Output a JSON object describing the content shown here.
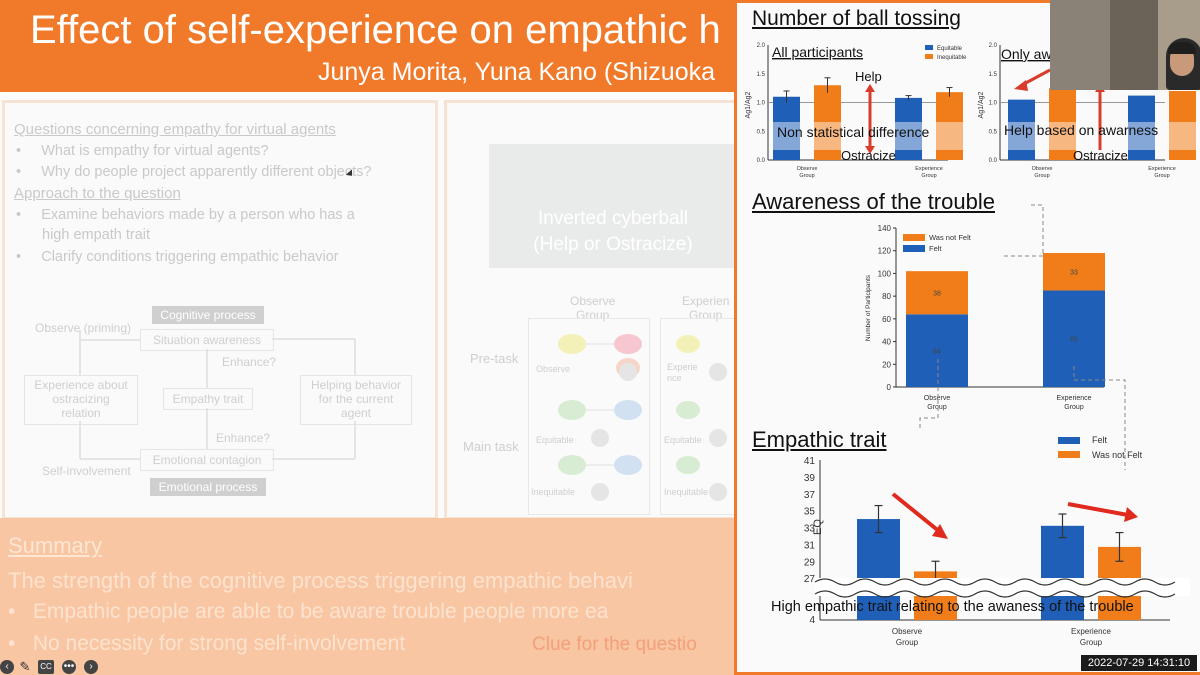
{
  "slide": {
    "title": "Effect of self-experience on empathic h",
    "authors": "Junya Morita, Yuna Kano (Shizuoka",
    "questions_heading": "Questions concerning empathy for virtual agents",
    "questions": [
      "What is empathy for virtual agents?",
      "Why do people project apparently different objects?"
    ],
    "approach_heading": "Approach to the question",
    "approach": [
      "Examine behaviors made by a person who has a",
      "high empath trait",
      "Clarify conditions triggering empathic behavior"
    ],
    "diagram": {
      "cognitive_process": "Cognitive process",
      "observe": "Observe (priming)",
      "situation_awareness": "Situation awareness",
      "enhance_1": "Enhance?",
      "experience_box_1": "Experience about",
      "experience_box_2": "ostracizing",
      "experience_box_3": "relation",
      "empathy_trait": "Empathy trait",
      "helping_1": "Helping behavior",
      "helping_2": "for the current",
      "helping_3": "agent",
      "enhance_2": "Enhance?",
      "self_involvement": "Self-involvement",
      "emotional_contagion": "Emotional contagion",
      "emotional_process": "Emotional process"
    },
    "cyberball_line1": "Inverted cyberball",
    "cyberball_line2": "(Help or Ostracize)",
    "observe_group_1": "Observe",
    "observe_group_2": "Group",
    "experience_group_1": "Experien",
    "experience_group_2": "Group",
    "pre_task": "Pre-task",
    "main_task": "Main task",
    "observe_small": "Observe",
    "experience_small": "Experie",
    "experience_small_2": "nce",
    "equitable": "Equitable",
    "equitable_2": "Equitable",
    "inequitable": "Inequitable",
    "inequitable_2": "Inequitable",
    "summary_title": "Summary",
    "summary_line1": "The strength of the cognitive process triggering empathic behavi",
    "summary_bullet1": "Empathic people are able to be aware trouble people more ea",
    "summary_bullet2": "No necessity for strong self-involvement",
    "clue": "Clue for the questio"
  },
  "controls": [
    "back-icon",
    "pen-icon",
    "cc-icon",
    "more-icon",
    "forward-icon"
  ],
  "controls_cc": "CC",
  "right": {
    "section1_title": "Number of ball tossing",
    "section2_title": "Awareness of the trouble",
    "section3_title": "Empathic trait",
    "timestamp": "2022-07-29  14:31:10"
  },
  "chart_data": [
    {
      "type": "bar",
      "title": "All participants",
      "ylabel": "Ag1/Ag2",
      "ylim": [
        0.0,
        2.0
      ],
      "yticks": [
        "0.0",
        "0.5",
        "1.0",
        "1.5",
        "2.0"
      ],
      "categories": [
        "Observe Group",
        "Experience Group"
      ],
      "category_lines": [
        [
          "Observe",
          "Group"
        ],
        [
          "Experience",
          "Group"
        ]
      ],
      "series": [
        {
          "name": "Equitable",
          "color": "#1f5fb8",
          "values": [
            1.1,
            1.08
          ],
          "errors": [
            0.1,
            0.04
          ]
        },
        {
          "name": "Inequitable",
          "color": "#f07d1a",
          "values": [
            1.3,
            1.18
          ],
          "errors": [
            0.13,
            0.08
          ]
        }
      ],
      "legend": "top-right",
      "annotations": {
        "help": "Help",
        "ostracize": "Ostracize",
        "note": "Non statistical difference"
      }
    },
    {
      "type": "bar",
      "title": "Only aw",
      "ylabel": "Ag1/Ag2",
      "ylim": [
        0.0,
        2.0
      ],
      "yticks": [
        "0.0",
        "0.5",
        "1.0",
        "1.5",
        "2.0"
      ],
      "categories": [
        "Observe Group",
        "Experience Group"
      ],
      "category_lines": [
        [
          "Observe",
          "Group"
        ],
        [
          "Experience",
          "Group"
        ]
      ],
      "series": [
        {
          "name": "Equitable",
          "color": "#1f5fb8",
          "values": [
            1.05,
            1.12
          ]
        },
        {
          "name": "Inequitable",
          "color": "#f07d1a",
          "values": [
            1.25,
            1.2
          ]
        }
      ],
      "annotations": {
        "note": "Help based on awarness",
        "ostracize": "Ostracize"
      }
    },
    {
      "type": "bar",
      "stacked": true,
      "ylabel": "Number of Participants",
      "ylim": [
        0,
        140
      ],
      "yticks": [
        "0",
        "20",
        "40",
        "60",
        "80",
        "100",
        "120",
        "140"
      ],
      "categories": [
        "Observe Group",
        "Experience Group"
      ],
      "category_lines": [
        [
          "Observe",
          "Group"
        ],
        [
          "Experience",
          "Group"
        ]
      ],
      "series": [
        {
          "name": "Felt",
          "color": "#1f5fb8",
          "values": [
            64,
            85
          ],
          "labels": [
            "64",
            "85"
          ]
        },
        {
          "name": "Was not Felt",
          "color": "#f07d1a",
          "values": [
            38,
            33
          ],
          "labels": [
            "38",
            "33"
          ]
        }
      ],
      "legend": "top-left"
    },
    {
      "type": "bar",
      "ylabel": "EQ",
      "ylim": [
        25,
        41
      ],
      "yticks": [
        "27",
        "29",
        "31",
        "33",
        "35",
        "37",
        "39",
        "41"
      ],
      "ytick_bottom": "4",
      "categories": [
        "Observe Group",
        "Experience Group"
      ],
      "category_lines": [
        [
          "Observe",
          "Group"
        ],
        [
          "Experience",
          "Group"
        ]
      ],
      "series": [
        {
          "name": "Felt",
          "color": "#1f5fb8",
          "values": [
            34,
            33.2
          ],
          "errors": [
            1.6,
            1.4
          ]
        },
        {
          "name": "Was not Felt",
          "color": "#f07d1a",
          "values": [
            27.8,
            30.7
          ],
          "errors": [
            1.2,
            1.7
          ]
        }
      ],
      "legend": "top-right",
      "annotations": {
        "note": "High empathic trait relating to the awaness of the trouble"
      }
    }
  ]
}
